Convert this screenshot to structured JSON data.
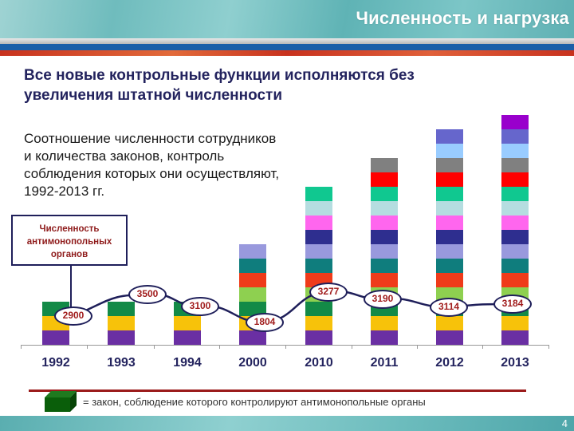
{
  "header": {
    "title": "Численность и нагрузка"
  },
  "flag_colors": {
    "white": "#d8d8d8",
    "blue": "#1a5ea8",
    "red": "#c8321e"
  },
  "headline": "Все новые контрольные функции исполняются без увеличения штатной численности",
  "subtext": "Соотношение численности сотрудников и количества законов, контроль соблюдения которых они осуществляют, 1992-2013 гг.",
  "callout": {
    "label": "Численность антимонопольных органов"
  },
  "legend": {
    "text": "= закон, соблюдение которого контролируют антимонопольные органы",
    "cube_color": "#0a5e0a"
  },
  "footer": {
    "page_number": "4"
  },
  "segment_colors": [
    "#6a2fa3",
    "#f7c20a",
    "#138a47",
    "#8ed050",
    "#ef3b1a",
    "#0f7d7d",
    "#9999dd",
    "#2e2e8f",
    "#ff66ee",
    "#b5dde0",
    "#10c890",
    "#ff0000",
    "#808080",
    "#99ccff",
    "#6666cc",
    "#9900cc"
  ],
  "chart_data": {
    "type": "bar",
    "title": "Соотношение численности сотрудников и количества законов, контроль соблюдения которых они осуществляют, 1992-2013 гг.",
    "categories": [
      "1992",
      "1993",
      "1994",
      "2000",
      "2010",
      "2011",
      "2012",
      "2013"
    ],
    "series": [
      {
        "name": "Количество законов (сегменты)",
        "kind": "stacked-bar",
        "values": [
          3,
          3,
          3,
          7,
          11,
          13,
          15,
          16
        ]
      },
      {
        "name": "Численность антимонопольных органов",
        "kind": "line",
        "values": [
          2900,
          3500,
          3100,
          1804,
          3277,
          3190,
          3114,
          3184
        ]
      }
    ],
    "xlabel": "",
    "ylabel": "",
    "grid": false,
    "annotations": [
      "Численность антимонопольных органов",
      "= закон, соблюдение которого контролируют антимонопольные органы"
    ]
  }
}
